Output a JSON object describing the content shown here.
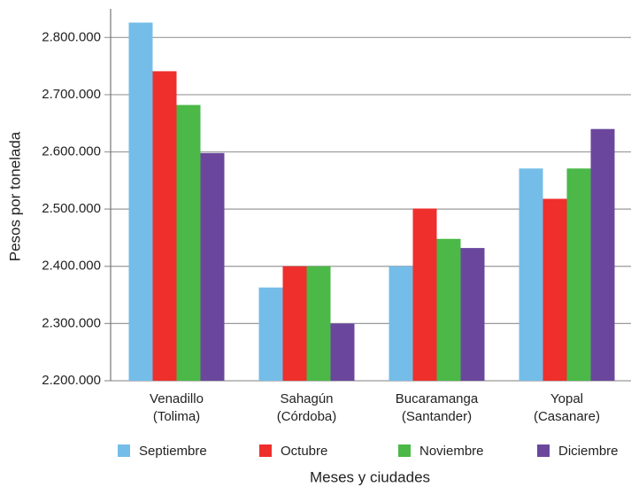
{
  "chart_data": {
    "type": "bar",
    "x_label": "Meses y ciudades",
    "y_label": "Pesos por tonelada",
    "categories": [
      "Venadillo\n(Tolima)",
      "Sahagún\n(Córdoba)",
      "Bucaramanga\n(Santander)",
      "Yopal\n(Casanare)"
    ],
    "series": [
      {
        "name": "Septiembre",
        "color": "#74bde8",
        "values": [
          2826000,
          2363000,
          2400000,
          2571000
        ]
      },
      {
        "name": "Octubre",
        "color": "#ee2f2c",
        "values": [
          2741000,
          2400000,
          2501000,
          2518000
        ]
      },
      {
        "name": "Noviembre",
        "color": "#4bb848",
        "values": [
          2682000,
          2400000,
          2448000,
          2571000
        ]
      },
      {
        "name": "Diciembre",
        "color": "#6a479d",
        "values": [
          2598000,
          2300000,
          2432000,
          2640000
        ]
      }
    ],
    "ylim": [
      2200000,
      2850000
    ],
    "yticks": [
      {
        "value": 2200000,
        "label": "2.200.000"
      },
      {
        "value": 2300000,
        "label": "2.300.000"
      },
      {
        "value": 2400000,
        "label": "2.400.000"
      },
      {
        "value": 2500000,
        "label": "2.500.000"
      },
      {
        "value": 2600000,
        "label": "2.600.000"
      },
      {
        "value": 2700000,
        "label": "2.700.000"
      },
      {
        "value": 2800000,
        "label": "2.800.000"
      }
    ],
    "grid": true,
    "legend": "bottom"
  }
}
